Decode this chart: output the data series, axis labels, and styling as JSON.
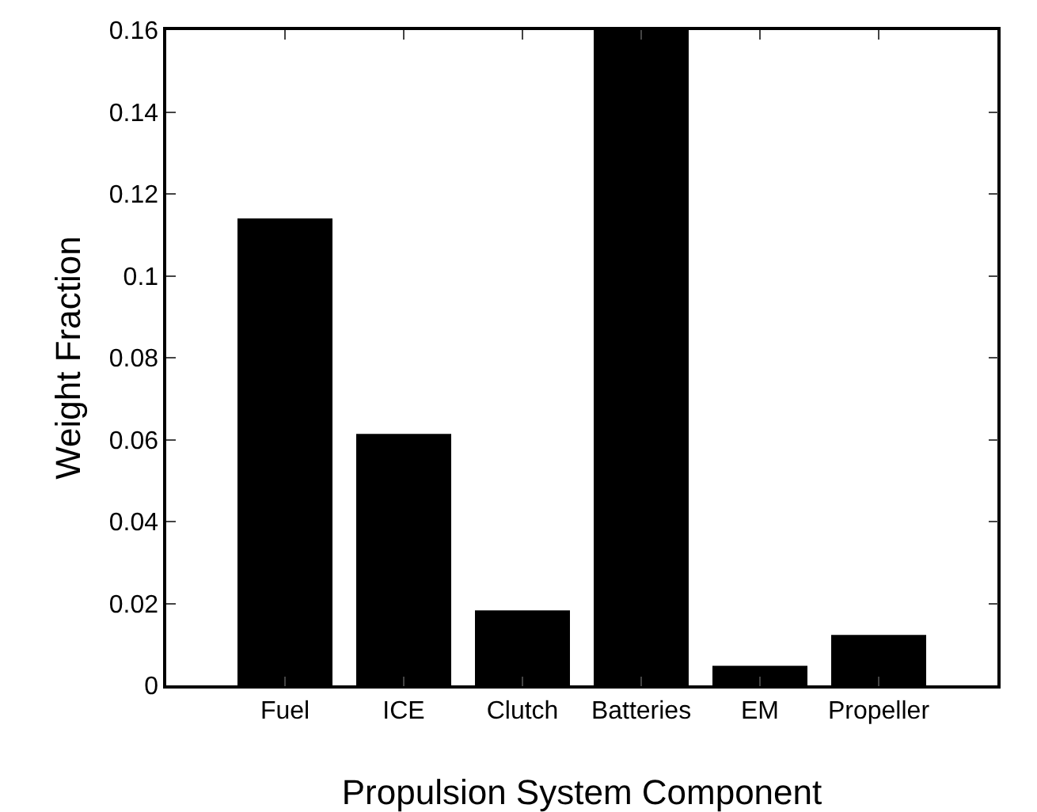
{
  "chart_data": {
    "type": "bar",
    "xlabel": "Propulsion System Component",
    "ylabel": "Weight Fraction",
    "categories": [
      "Fuel",
      "ICE",
      "Clutch",
      "Batteries",
      "EM",
      "Propeller"
    ],
    "values": [
      0.114,
      0.0614,
      0.0183,
      0.16,
      0.0048,
      0.0123
    ],
    "color": "#000000",
    "ylim": [
      0,
      0.16
    ],
    "yticks": [
      0,
      0.02,
      0.04,
      0.06,
      0.08,
      0.1,
      0.12,
      0.14,
      0.16
    ],
    "grid": false,
    "legend": false
  }
}
